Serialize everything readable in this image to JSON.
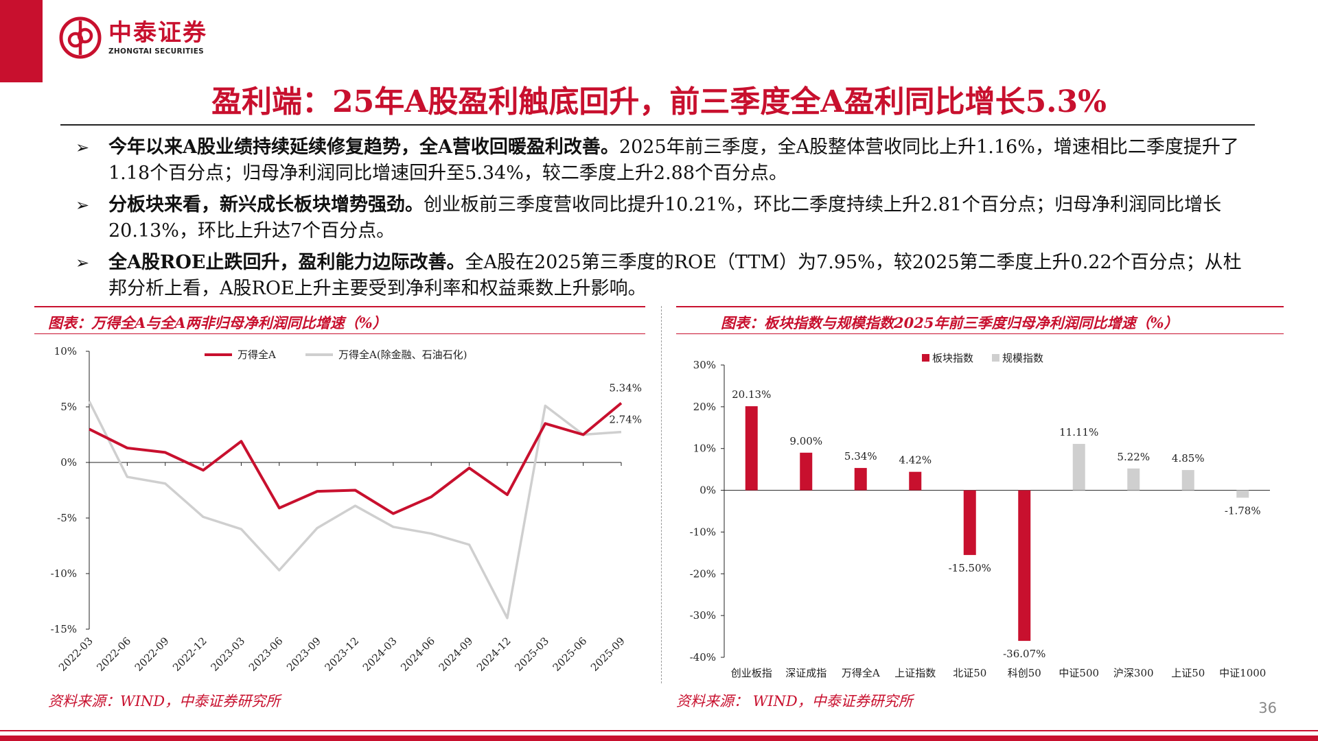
{
  "logo": {
    "name": "中泰证券",
    "sub": "ZHONGTAI SECURITIES"
  },
  "title": "盈利端：25年A股盈利触底回升，前三季度全A盈利同比增长5.3%",
  "bullets": [
    {
      "bold": "今年以来A股业绩持续延续修复趋势，全A营收回暖盈利改善。",
      "text": "2025年前三季度，全A股整体营收同比上升1.16%，增速相比二季度提升了1.18个百分点；归母净利润同比增速回升至5.34%，较二季度上升2.88个百分点。"
    },
    {
      "bold": "分板块来看，新兴成长板块增势强劲。",
      "text": "创业板前三季度营收同比提升10.21%，环比二季度持续上升2.81个百分点；归母净利润同比增长20.13%，环比上升达7个百分点。"
    },
    {
      "bold": "全A股ROE止跌回升，盈利能力边际改善。",
      "text": "全A股在2025第三季度的ROE（TTM）为7.95%，较2025第二季度上升0.22个百分点；从杜邦分析上看，A股ROE上升主要受到净利率和权益乘数上升影响。"
    }
  ],
  "left_chart_title": "图表：万得全A与全A两非归母净利润同比增速（%）",
  "right_chart_title": "图表：板块指数与规模指数2025年前三季度归母净利润同比增速（%）",
  "chart_data": [
    {
      "type": "line",
      "x": [
        "2022-03",
        "2022-06",
        "2022-09",
        "2022-12",
        "2023-03",
        "2023-06",
        "2023-09",
        "2023-12",
        "2024-03",
        "2024-06",
        "2024-09",
        "2024-12",
        "2025-03",
        "2025-06",
        "2025-09"
      ],
      "series": [
        {
          "name": "万得全A",
          "color": "#c8102e",
          "values": [
            3.0,
            1.3,
            0.9,
            -0.7,
            1.9,
            -4.1,
            -2.6,
            -2.5,
            -4.6,
            -3.1,
            -0.5,
            -2.9,
            3.5,
            2.5,
            5.34
          ]
        },
        {
          "name": "万得全A(除金融、石油石化)",
          "color": "#cfcfcf",
          "values": [
            5.5,
            -1.3,
            -1.9,
            -4.9,
            -6.0,
            -9.7,
            -5.9,
            -3.9,
            -5.8,
            -6.4,
            -7.4,
            -14.0,
            5.1,
            2.5,
            2.74
          ]
        }
      ],
      "yticks": [
        "10%",
        "5%",
        "0%",
        "-5%",
        "-10%",
        "-15%"
      ],
      "ylim": [
        -15,
        10
      ],
      "data_labels": [
        "5.34%",
        "2.74%"
      ],
      "legend_position": "top"
    },
    {
      "type": "bar",
      "categories": [
        "创业板指",
        "深证成指",
        "万得全A",
        "上证指数",
        "北证50",
        "科创50",
        "中证500",
        "沪深300",
        "上证50",
        "中证1000"
      ],
      "values": [
        20.13,
        9.0,
        5.34,
        4.42,
        -15.5,
        -36.07,
        11.11,
        5.22,
        4.85,
        -1.78
      ],
      "labels": [
        "20.13%",
        "9.00%",
        "5.34%",
        "4.42%",
        "-15.50%",
        "-36.07%",
        "11.11%",
        "5.22%",
        "4.85%",
        "-1.78%"
      ],
      "groups": [
        "板块指数",
        "板块指数",
        "板块指数",
        "板块指数",
        "板块指数",
        "板块指数",
        "规模指数",
        "规模指数",
        "规模指数",
        "规模指数"
      ],
      "series": [
        {
          "name": "板块指数",
          "color": "#c8102e"
        },
        {
          "name": "规模指数",
          "color": "#cfcfcf"
        }
      ],
      "yticks": [
        "30%",
        "20%",
        "10%",
        "0%",
        "-10%",
        "-20%",
        "-30%",
        "-40%"
      ],
      "ylim": [
        -40,
        30
      ],
      "legend_position": "top"
    }
  ],
  "sources": {
    "left": "资料来源：WIND，中泰证券研究所",
    "right": "资料来源： WIND，中泰证券研究所"
  },
  "page_number": "36"
}
